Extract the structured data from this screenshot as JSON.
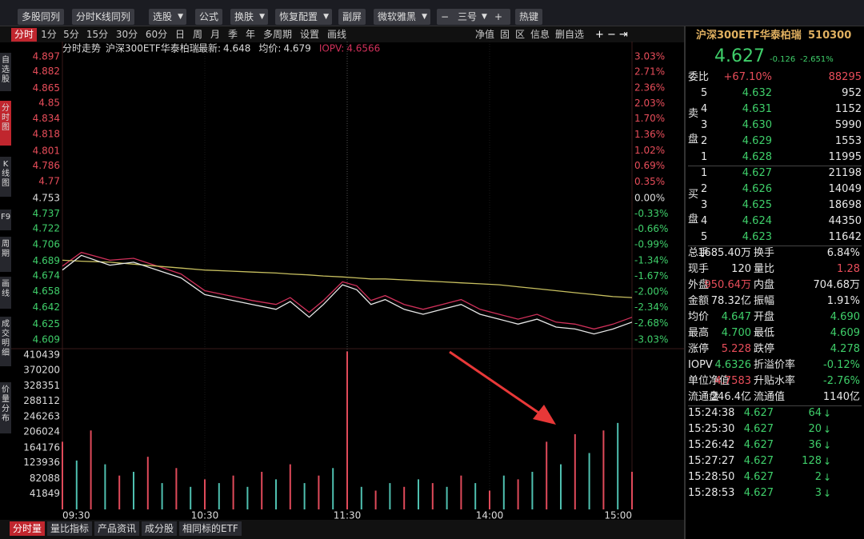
{
  "toolbar": [
    "多股同列",
    "分时K线同列",
    "选股",
    "公式",
    "换肤",
    "恢复配置",
    "副屏",
    "微软雅黑",
    "三号",
    "热键"
  ],
  "period_tabs": [
    "分时",
    "1分",
    "5分",
    "15分",
    "30分",
    "60分",
    "日",
    "周",
    "月",
    "季",
    "年",
    "多周期",
    "设置",
    "画线"
  ],
  "chart_tools": [
    "净值",
    "固",
    "区",
    "信息",
    "删自选"
  ],
  "side_tabs": [
    "自选股",
    "分时图",
    "K线图",
    "F9",
    "周期",
    "画线",
    "成交明细",
    "价量分布"
  ],
  "bottom_tabs": [
    "分时量",
    "量比指标",
    "产品资讯",
    "成分股",
    "相同标的ETF"
  ],
  "chart_data": [
    {
      "type": "line",
      "title": "分时走势",
      "subtitle": "沪深300ETF华泰柏瑞",
      "x": [
        0,
        8,
        20,
        30,
        40,
        50,
        60,
        70,
        80,
        90,
        96,
        104,
        110,
        118,
        124,
        130,
        136,
        144,
        152,
        160,
        168,
        176,
        184,
        192,
        200,
        208,
        216,
        224,
        232,
        240
      ],
      "xlim": [
        0,
        240
      ],
      "xticks": [
        {
          "value": 0,
          "label": "09:30"
        },
        {
          "value": 60,
          "label": "10:30"
        },
        {
          "value": 120,
          "label": "11:30"
        },
        {
          "value": 180,
          "label": "14:00"
        },
        {
          "value": 240,
          "label": "15:00"
        }
      ],
      "ylim": [
        4.6,
        4.906
      ],
      "yticks": [
        4.897,
        4.882,
        4.865,
        4.85,
        4.834,
        4.818,
        4.801,
        4.786,
        4.77,
        4.753,
        4.737,
        4.722,
        4.706,
        4.689,
        4.674,
        4.658,
        4.642,
        4.625,
        4.609
      ],
      "y2lim": [
        -3.22,
        3.22
      ],
      "y2ticks": [
        {
          "value": 3.03,
          "label": "3.03%"
        },
        {
          "value": 2.71,
          "label": "2.71%"
        },
        {
          "value": 2.36,
          "label": "2.36%"
        },
        {
          "value": 2.03,
          "label": "2.03%"
        },
        {
          "value": 1.7,
          "label": "1.70%"
        },
        {
          "value": 1.36,
          "label": "1.36%"
        },
        {
          "value": 1.02,
          "label": "1.02%"
        },
        {
          "value": 0.69,
          "label": "0.69%"
        },
        {
          "value": 0.35,
          "label": "0.35%"
        },
        {
          "value": 0,
          "label": "0.00%"
        },
        {
          "value": -0.33,
          "label": "-0.33%"
        },
        {
          "value": -0.66,
          "label": "-0.66%"
        },
        {
          "value": -0.99,
          "label": "-0.99%"
        },
        {
          "value": -1.34,
          "label": "-1.34%"
        },
        {
          "value": -1.67,
          "label": "-1.67%"
        },
        {
          "value": -2.0,
          "label": "-2.00%"
        },
        {
          "value": -2.34,
          "label": "-2.34%"
        },
        {
          "value": -2.68,
          "label": "-2.68%"
        },
        {
          "value": -3.03,
          "label": "-3.03%"
        }
      ],
      "series": [
        {
          "name": "最新:",
          "current": 4.648,
          "color": "#e8e8e8",
          "values": [
            4.68,
            4.695,
            4.685,
            4.688,
            4.68,
            4.672,
            4.655,
            4.65,
            4.645,
            4.64,
            4.648,
            4.632,
            4.645,
            4.665,
            4.66,
            4.645,
            4.65,
            4.64,
            4.635,
            4.64,
            4.645,
            4.635,
            4.63,
            4.625,
            4.63,
            4.622,
            4.62,
            4.615,
            4.62,
            4.627
          ]
        },
        {
          "name": "均价:",
          "current": 4.679,
          "color": "#c8c060",
          "values": [
            4.69,
            4.689,
            4.688,
            4.686,
            4.684,
            4.682,
            4.68,
            4.679,
            4.678,
            4.677,
            4.676,
            4.675,
            4.674,
            4.673,
            4.672,
            4.671,
            4.671,
            4.67,
            4.669,
            4.668,
            4.667,
            4.666,
            4.665,
            4.663,
            4.661,
            4.659,
            4.657,
            4.655,
            4.653,
            4.652
          ]
        },
        {
          "name": "IOPV:",
          "current": 4.6566,
          "color": "#d0305a",
          "values": [
            4.684,
            4.698,
            4.69,
            4.692,
            4.684,
            4.676,
            4.659,
            4.654,
            4.649,
            4.645,
            4.652,
            4.637,
            4.649,
            4.668,
            4.664,
            4.649,
            4.654,
            4.645,
            4.64,
            4.645,
            4.65,
            4.64,
            4.635,
            4.63,
            4.635,
            4.627,
            4.625,
            4.62,
            4.625,
            4.632
          ]
        }
      ]
    },
    {
      "type": "bar",
      "x": [
        0,
        6,
        12,
        18,
        24,
        30,
        36,
        42,
        48,
        54,
        60,
        66,
        72,
        78,
        84,
        90,
        96,
        102,
        108,
        114,
        120,
        126,
        132,
        138,
        144,
        150,
        156,
        162,
        168,
        174,
        180,
        186,
        192,
        198,
        204,
        210,
        216,
        222,
        228,
        234,
        240
      ],
      "xlim": [
        0,
        240
      ],
      "values": [
        180000,
        130000,
        210000,
        120000,
        90000,
        100000,
        140000,
        70000,
        110000,
        60000,
        80000,
        70000,
        90000,
        60000,
        100000,
        80000,
        120000,
        70000,
        90000,
        110000,
        420000,
        60000,
        50000,
        70000,
        60000,
        80000,
        70000,
        60000,
        90000,
        70000,
        50000,
        90000,
        80000,
        100000,
        180000,
        120000,
        200000,
        150000,
        210000,
        230000,
        100000
      ],
      "colors": [
        "#e04a5a",
        "#4fc0b0"
      ],
      "ylim": [
        0,
        427500
      ],
      "yticks": [
        410439,
        370200,
        328351,
        288112,
        246263,
        206024,
        164176,
        123936,
        82088,
        41849
      ]
    }
  ],
  "quote": {
    "name": "沪深300ETF华泰柏瑞",
    "code": "510300",
    "price": "4.627",
    "change": "-0.126",
    "change_pct": "-2.651%",
    "weibi": [
      "委比",
      "+67.10%",
      "88295"
    ],
    "sell_label": [
      "卖",
      "盘"
    ],
    "buy_label": [
      "买",
      "盘"
    ],
    "asks": [
      [
        "5",
        "4.632",
        "952"
      ],
      [
        "4",
        "4.631",
        "1152"
      ],
      [
        "3",
        "4.630",
        "5990"
      ],
      [
        "2",
        "4.629",
        "1553"
      ],
      [
        "1",
        "4.628",
        "11995"
      ]
    ],
    "bids": [
      [
        "1",
        "4.627",
        "21198"
      ],
      [
        "2",
        "4.626",
        "14049"
      ],
      [
        "3",
        "4.625",
        "18698"
      ],
      [
        "4",
        "4.624",
        "44350"
      ],
      [
        "5",
        "4.623",
        "11642"
      ]
    ],
    "stats": [
      [
        "总手",
        "1685.40万",
        "换手",
        "6.84%"
      ],
      [
        "现手",
        "120",
        "量比",
        "1.28"
      ],
      [
        "外盘",
        "950.64万",
        "内盘",
        "704.68万"
      ],
      [
        "金额",
        "78.32亿",
        "振幅",
        "1.91%"
      ],
      [
        "均价",
        "4.647",
        "开盘",
        "4.690"
      ],
      [
        "最高",
        "4.700",
        "最低",
        "4.609"
      ],
      [
        "涨停",
        "5.228",
        "跌停",
        "4.278"
      ],
      [
        "IOPV",
        "4.6326",
        "折溢价率",
        "-0.12%"
      ],
      [
        "单位净值",
        "4.7583",
        "升贴水率",
        "-2.76%"
      ],
      [
        "流通盘",
        "246.4亿",
        "流通值",
        "1140亿"
      ]
    ],
    "trades": [
      [
        "15:24:38",
        "4.627",
        "64"
      ],
      [
        "15:25:30",
        "4.627",
        "20"
      ],
      [
        "15:26:42",
        "4.627",
        "36"
      ],
      [
        "15:27:27",
        "4.627",
        "128"
      ],
      [
        "15:28:50",
        "4.627",
        "2"
      ],
      [
        "15:28:53",
        "4.627",
        "3"
      ]
    ]
  }
}
